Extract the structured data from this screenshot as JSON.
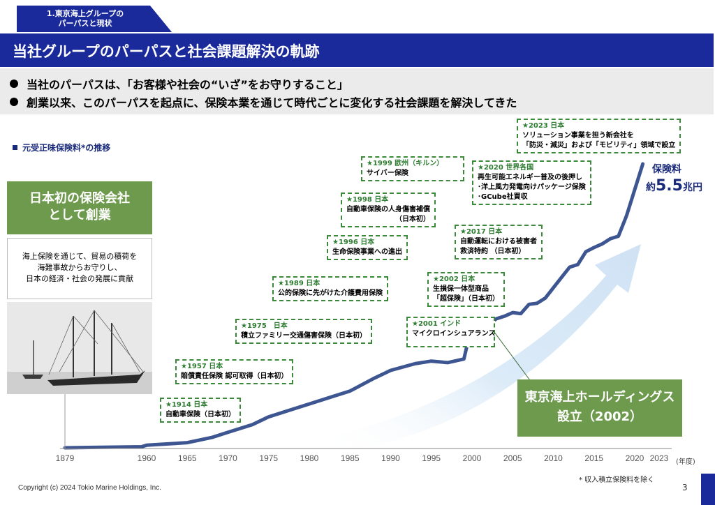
{
  "header": {
    "section_tab_line1": "1.東京海上グループの",
    "section_tab_line2": "パーパスと現状",
    "title": "当社グループのパーパスと社会課題解決の軌跡"
  },
  "bullets": [
    "当社のパーパスは、「お客様や社会の“いざ”をお守りすること」",
    "創業以来、このパーパスを起点に、保険本業を通じて時代ごとに変化する社会課題を解決してきた"
  ],
  "chart": {
    "caption": "元受正味保険料*の推移",
    "unit": "(年度)",
    "footnote": "* 収入積立保険料を除く",
    "revenue_label": "保険料",
    "revenue_prefix": "約",
    "revenue_value": "5.5",
    "revenue_suffix": "兆円",
    "colors": {
      "line": "#3d5590",
      "arrow": "#d6e8f7",
      "title": "#1a2a9a",
      "green": "#6e9a4e",
      "note_border": "#3a8a3a"
    }
  },
  "chart_data": {
    "type": "line",
    "title": "元受正味保険料*の推移",
    "xlabel": "(年度)",
    "ylabel": "",
    "x_ticks": [
      "1879",
      "1960",
      "1965",
      "1970",
      "1975",
      "1980",
      "1985",
      "1990",
      "1995",
      "2000",
      "2005",
      "2010",
      "2015",
      "2020",
      "2023"
    ],
    "end_value_label": "約5.5兆円",
    "series": [
      {
        "x": [
          1879,
          1955,
          1960,
          1965,
          1968,
          1970,
          1973,
          1975,
          1978,
          1980,
          1983,
          1985,
          1988,
          1990,
          1993,
          1995,
          1997,
          1999,
          2000,
          2001,
          2002,
          2003,
          2004,
          2005,
          2006,
          2007,
          2008,
          2009,
          2010,
          2011,
          2012,
          2013,
          2014,
          2015,
          2016,
          2017,
          2018,
          2019,
          2020,
          2021
        ],
        "y": [
          0.0,
          0.02,
          0.05,
          0.1,
          0.2,
          0.3,
          0.45,
          0.6,
          0.75,
          0.85,
          1.0,
          1.1,
          1.35,
          1.5,
          1.63,
          1.68,
          1.65,
          1.72,
          2.4,
          2.38,
          2.4,
          2.5,
          2.55,
          2.62,
          2.6,
          2.78,
          2.8,
          2.9,
          3.1,
          3.3,
          3.5,
          3.55,
          3.8,
          3.88,
          3.95,
          4.05,
          4.1,
          4.5,
          5.0,
          5.5
        ]
      }
    ]
  },
  "founding": {
    "title_line1": "日本初の保険会社",
    "title_line2": "として創業",
    "desc_line1": "海上保険を通じて、貿易の積荷を",
    "desc_line2": "海難事故からお守りし、",
    "desc_line3": "日本の経済・社会の発展に貢献"
  },
  "milestones": [
    {
      "year": "★1914 日本",
      "lines": [
        "自動車保険（日本初）"
      ]
    },
    {
      "year": "★1957 日本",
      "lines": [
        "賠償責任保険 認可取得（日本初）"
      ]
    },
    {
      "year": "★1975　日本",
      "lines": [
        "積立ファミリー交通傷害保険（日本初）"
      ]
    },
    {
      "year": "★1989 日本",
      "lines": [
        "公的保険に先がけた介護費用保険"
      ]
    },
    {
      "year": "★1996 日本",
      "lines": [
        "生命保険事業への進出"
      ]
    },
    {
      "year": "★1998 日本",
      "lines": [
        "自動車保険の人身傷害補償",
        "（日本初）"
      ]
    },
    {
      "year": "★1999 欧州（キルン）",
      "lines": [
        "サイバー保険"
      ]
    },
    {
      "year": "★2001 インド",
      "lines": [
        "マイクロインシュアランス"
      ]
    },
    {
      "year": "★2002 日本",
      "lines": [
        "生損保一体型商品",
        "「超保険」（日本初）"
      ]
    },
    {
      "year": "★2017 日本",
      "lines": [
        "自動運転における被害者",
        "救済特約 （日本初）"
      ]
    },
    {
      "year": "★2020 世界各国",
      "lines": [
        "再生可能エネルギー普及の後押し",
        "･洋上風力発電向けパッケージ保険",
        "･GCube社買収"
      ]
    },
    {
      "year": "★2023 日本",
      "lines": [
        "ソリューション事業を担う新会社を",
        "「防災・減災」および「モビリティ」領域で設立"
      ]
    }
  ],
  "holdings": {
    "line1": "東京海上ホールディングス",
    "line2": "設立（2002）"
  },
  "footer": {
    "copyright": "Copyright (c) 2024 Tokio Marine Holdings, Inc.",
    "page": "3"
  }
}
